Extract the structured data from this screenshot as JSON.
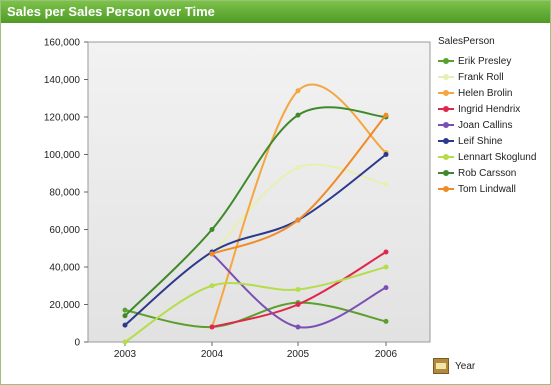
{
  "window": {
    "title": "Sales per Sales Person over Time"
  },
  "year_button": {
    "icon": "table-icon",
    "label": "Year"
  },
  "chart_data": {
    "type": "line",
    "title": "Sales per Sales Person over Time",
    "x": [
      "2003",
      "2004",
      "2005",
      "2006"
    ],
    "ylim": [
      0,
      160000
    ],
    "yticks": [
      "0",
      "20,000",
      "40,000",
      "60,000",
      "80,000",
      "100,000",
      "120,000",
      "140,000",
      "160,000"
    ],
    "grid": false,
    "legend_title": "SalesPerson",
    "legend_position": "right",
    "series": [
      {
        "name": "Erik Presley",
        "color": "#5aa02c",
        "values": [
          17000,
          8000,
          21000,
          11000
        ]
      },
      {
        "name": "Frank Roll",
        "color": "#e8efb0",
        "values": [
          null,
          47000,
          93000,
          84000
        ]
      },
      {
        "name": "Helen Brolin",
        "color": "#f4a640",
        "values": [
          null,
          8000,
          134000,
          101000
        ]
      },
      {
        "name": "Ingrid Hendrix",
        "color": "#e0264a",
        "values": [
          null,
          8000,
          20000,
          48000
        ]
      },
      {
        "name": "Joan Callins",
        "color": "#7b50b4",
        "values": [
          null,
          47000,
          8000,
          29000
        ]
      },
      {
        "name": "Leif Shine",
        "color": "#2b3a8c",
        "values": [
          9000,
          48000,
          65000,
          100000
        ]
      },
      {
        "name": "Lennart Skoglund",
        "color": "#b5dd4a",
        "values": [
          0,
          30000,
          28000,
          40000
        ]
      },
      {
        "name": "Rob Carsson",
        "color": "#3e8a2a",
        "values": [
          14000,
          60000,
          121000,
          120000
        ]
      },
      {
        "name": "Tom Lindwall",
        "color": "#f08c28",
        "values": [
          null,
          47000,
          65000,
          121000
        ]
      }
    ]
  }
}
